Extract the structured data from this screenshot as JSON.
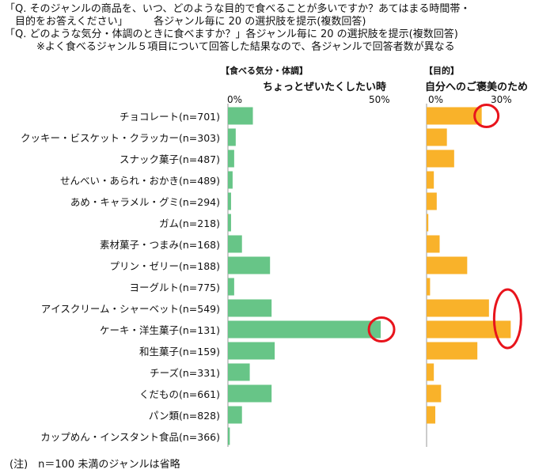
{
  "header": {
    "line1": "「Q. そのジャンルの商品を、いつ、どのような目的で食べることが多いですか？あてはまる時間帯・",
    "line2": "　目的をお答えください」　　　各ジャンル毎に 20 の選択肢を提示(複数回答)",
    "line3": "「Q. どのような気分・体調のときに食べますか？」各ジャンル毎に 20 の選択肢を提示(複数回答)",
    "line4": "※よく食べるジャンル５項目について回答した結果なので、各ジャンルで回答者数が異なる"
  },
  "footnote": "(注)　n＝100 未満のジャンルは省略",
  "chart_data": [
    {
      "type": "bar",
      "orientation": "horizontal",
      "section_label": "【食べる気分・体調】",
      "title": "ちょっとぜいたくしたい時",
      "tick_labels": [
        "0%",
        "50%"
      ],
      "xlim": [
        0,
        50
      ],
      "unit": "%",
      "bar_color": "#67c587",
      "categories": [
        "チョコレート(n=701)",
        "クッキー・ビスケット・クラッカー(n=303)",
        "スナック菓子(n=487)",
        "せんべい・あられ・おかき(n=489)",
        "あめ・キャラメル・グミ(n=294)",
        "ガム(n=218)",
        "素材菓子・つまみ(n=168)",
        "プリン・ゼリー(n=188)",
        "ヨーグルト(n=775)",
        "アイスクリーム・シャーベット(n=549)",
        "ケーキ・洋生菓子(n=131)",
        "和生菓子(n=159)",
        "チーズ(n=331)",
        "くだもの(n=661)",
        "パン類(n=828)",
        "カップめん・インスタント食品(n=366)"
      ],
      "values": [
        8,
        2.5,
        2,
        1.5,
        1,
        1,
        4.5,
        13.5,
        2,
        14,
        49,
        15,
        7,
        14,
        4.5,
        0.6
      ],
      "highlight_index": [
        10
      ]
    },
    {
      "type": "bar",
      "orientation": "horizontal",
      "section_label": "【目的】",
      "title": "自分へのご褒美のため",
      "tick_labels": [
        "0%",
        "30%"
      ],
      "xlim": [
        0,
        30
      ],
      "unit": "%",
      "bar_color": "#f9b22a",
      "values": [
        19,
        7,
        9.5,
        2.5,
        3.5,
        0.6,
        4.5,
        14,
        1.2,
        21.5,
        29,
        17.5,
        2.5,
        5,
        3,
        0
      ],
      "highlight_index": [
        0,
        9,
        10
      ]
    }
  ],
  "highlight_color": "#e8141c",
  "axis_color": "#999999"
}
